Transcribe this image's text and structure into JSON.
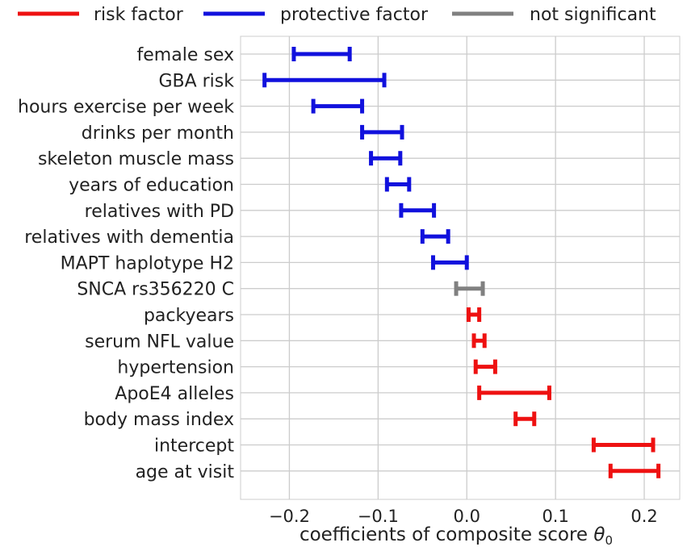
{
  "chart_data": {
    "type": "interval",
    "title": "",
    "xlabel": "coefficients of composite score",
    "xlabel_symbol": "θ",
    "xlabel_subscript": "0",
    "ylabel": "",
    "xlim": [
      -0.255,
      0.24
    ],
    "xticks": [
      -0.2,
      -0.1,
      0.0,
      0.1,
      0.2
    ],
    "xtick_labels": [
      "−0.2",
      "−0.1",
      "0.0",
      "0.1",
      "0.2"
    ],
    "grid": true,
    "legend_position": "top",
    "legend": [
      {
        "key": "risk",
        "label": "risk factor",
        "color": "#ee1111"
      },
      {
        "key": "protective",
        "label": "protective factor",
        "color": "#1111dd"
      },
      {
        "key": "ns",
        "label": "not significant",
        "color": "#808080"
      }
    ],
    "rows": [
      {
        "label": "female sex",
        "low": -0.195,
        "high": -0.132,
        "category": "protective"
      },
      {
        "label": "GBA risk",
        "low": -0.228,
        "high": -0.093,
        "category": "protective"
      },
      {
        "label": "hours exercise per week",
        "low": -0.173,
        "high": -0.118,
        "category": "protective"
      },
      {
        "label": "drinks per month",
        "low": -0.118,
        "high": -0.073,
        "category": "protective"
      },
      {
        "label": "skeleton muscle mass",
        "low": -0.108,
        "high": -0.075,
        "category": "protective"
      },
      {
        "label": "years of education",
        "low": -0.09,
        "high": -0.065,
        "category": "protective"
      },
      {
        "label": "relatives with PD",
        "low": -0.074,
        "high": -0.037,
        "category": "protective"
      },
      {
        "label": "relatives with dementia",
        "low": -0.05,
        "high": -0.021,
        "category": "protective"
      },
      {
        "label": "MAPT haplotype H2",
        "low": -0.038,
        "high": 0.0,
        "category": "protective"
      },
      {
        "label": "SNCA rs356220 C",
        "low": -0.012,
        "high": 0.018,
        "category": "ns"
      },
      {
        "label": "packyears",
        "low": 0.002,
        "high": 0.014,
        "category": "risk"
      },
      {
        "label": "serum NFL value",
        "low": 0.008,
        "high": 0.02,
        "category": "risk"
      },
      {
        "label": "hypertension",
        "low": 0.01,
        "high": 0.032,
        "category": "risk"
      },
      {
        "label": "ApoE4 alleles",
        "low": 0.014,
        "high": 0.093,
        "category": "risk"
      },
      {
        "label": "body mass index",
        "low": 0.055,
        "high": 0.076,
        "category": "risk"
      },
      {
        "label": "intercept",
        "low": 0.143,
        "high": 0.21,
        "category": "risk"
      },
      {
        "label": "age at visit",
        "low": 0.162,
        "high": 0.216,
        "category": "risk"
      }
    ]
  }
}
